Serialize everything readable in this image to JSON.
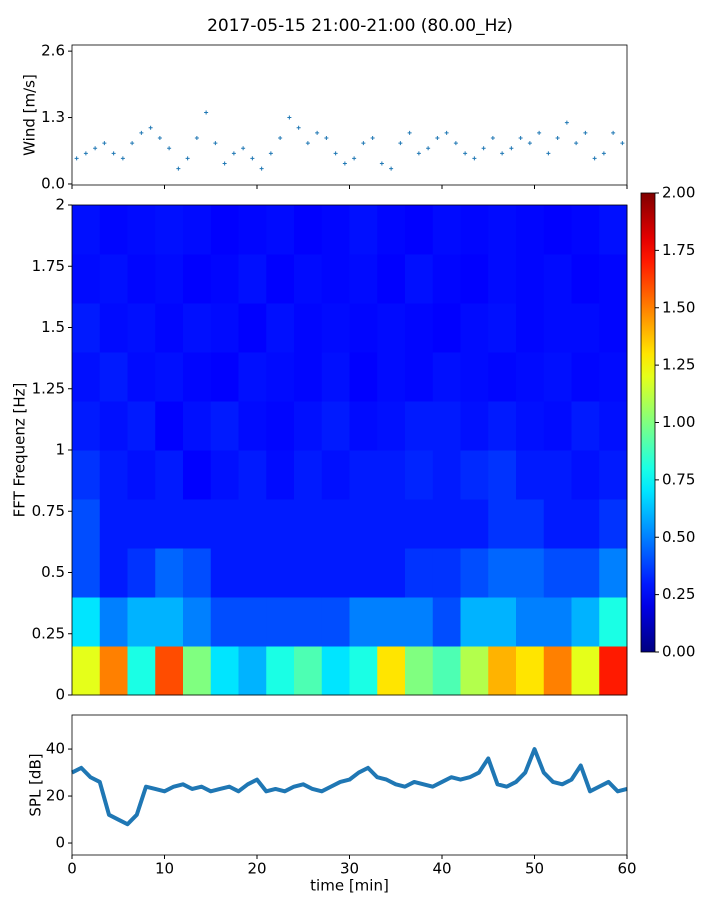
{
  "chart_data": [
    {
      "type": "scatter",
      "title": "2017-05-15 21:00-21:00 (80.00_Hz)",
      "ylabel": "Wind [m/s]",
      "color": "#1f77b4",
      "x": [
        0.5,
        1.5,
        2.5,
        3.5,
        4.5,
        5.5,
        6.5,
        7.5,
        8.5,
        9.5,
        10.5,
        11.5,
        12.5,
        13.5,
        14.5,
        15.5,
        16.5,
        17.5,
        18.5,
        19.5,
        20.5,
        21.5,
        22.5,
        23.5,
        24.5,
        25.5,
        26.5,
        27.5,
        28.5,
        29.5,
        30.5,
        31.5,
        32.5,
        33.5,
        34.5,
        35.5,
        36.5,
        37.5,
        38.5,
        39.5,
        40.5,
        41.5,
        42.5,
        43.5,
        44.5,
        45.5,
        46.5,
        47.5,
        48.5,
        49.5,
        50.5,
        51.5,
        52.5,
        53.5,
        54.5,
        55.5,
        56.5,
        57.5,
        58.5,
        59.5
      ],
      "values": [
        0.5,
        0.6,
        0.7,
        0.8,
        0.6,
        0.5,
        0.8,
        1.0,
        1.1,
        0.9,
        0.7,
        0.3,
        0.5,
        0.9,
        1.4,
        0.8,
        0.4,
        0.6,
        0.7,
        0.5,
        0.3,
        0.6,
        0.9,
        1.3,
        1.1,
        0.8,
        1.0,
        0.9,
        0.6,
        0.4,
        0.5,
        0.8,
        0.9,
        0.4,
        0.3,
        0.8,
        1.0,
        0.6,
        0.7,
        0.9,
        1.0,
        0.8,
        0.6,
        0.5,
        0.7,
        0.9,
        0.6,
        0.7,
        0.9,
        0.8,
        1.0,
        0.6,
        0.9,
        1.2,
        0.8,
        1.0,
        0.5,
        0.6,
        1.0,
        0.8
      ],
      "xlim": [
        0,
        60
      ],
      "xticks": [
        0,
        10,
        20,
        30,
        40,
        50,
        60
      ],
      "show_xtick_labels": false,
      "ylim": [
        -0.02,
        2.72
      ],
      "yticks": [
        {
          "value": 0,
          "label": "0.0"
        },
        1.3,
        2.6
      ]
    },
    {
      "type": "heatmap",
      "ylabel": "FFT Frequenz [Hz]",
      "colormap": "jet",
      "xlim": [
        0,
        60
      ],
      "ylim": [
        0,
        2
      ],
      "yticks": [
        0,
        0.25,
        0.5,
        0.75,
        1,
        1.25,
        1.5,
        1.75,
        2
      ],
      "z": [
        [
          1.2,
          1.5,
          0.8,
          1.6,
          1.0,
          0.7,
          0.6,
          0.8,
          0.9,
          0.7,
          0.8,
          1.3,
          1.0,
          0.9,
          1.1,
          1.4,
          1.3,
          1.5,
          1.2,
          1.7
        ],
        [
          0.7,
          0.5,
          0.6,
          0.6,
          0.5,
          0.4,
          0.4,
          0.4,
          0.4,
          0.4,
          0.5,
          0.5,
          0.5,
          0.4,
          0.6,
          0.6,
          0.5,
          0.5,
          0.6,
          0.8
        ],
        [
          0.4,
          0.3,
          0.35,
          0.45,
          0.4,
          0.3,
          0.3,
          0.3,
          0.3,
          0.3,
          0.3,
          0.3,
          0.35,
          0.35,
          0.4,
          0.45,
          0.45,
          0.4,
          0.4,
          0.5
        ],
        [
          0.4,
          0.3,
          0.3,
          0.3,
          0.3,
          0.3,
          0.3,
          0.3,
          0.3,
          0.3,
          0.3,
          0.3,
          0.3,
          0.3,
          0.3,
          0.35,
          0.35,
          0.3,
          0.3,
          0.35
        ],
        [
          0.35,
          0.3,
          0.28,
          0.3,
          0.25,
          0.28,
          0.3,
          0.27,
          0.3,
          0.28,
          0.3,
          0.3,
          0.32,
          0.3,
          0.33,
          0.35,
          0.3,
          0.3,
          0.28,
          0.3
        ],
        [
          0.3,
          0.28,
          0.3,
          0.25,
          0.28,
          0.3,
          0.27,
          0.26,
          0.28,
          0.3,
          0.27,
          0.28,
          0.3,
          0.3,
          0.28,
          0.3,
          0.28,
          0.27,
          0.3,
          0.28
        ],
        [
          0.28,
          0.3,
          0.27,
          0.28,
          0.26,
          0.25,
          0.28,
          0.27,
          0.26,
          0.28,
          0.25,
          0.27,
          0.26,
          0.28,
          0.27,
          0.26,
          0.27,
          0.28,
          0.26,
          0.27
        ],
        [
          0.3,
          0.27,
          0.28,
          0.26,
          0.28,
          0.27,
          0.25,
          0.28,
          0.26,
          0.27,
          0.26,
          0.27,
          0.26,
          0.25,
          0.27,
          0.28,
          0.26,
          0.27,
          0.27,
          0.26
        ],
        [
          0.27,
          0.28,
          0.26,
          0.27,
          0.25,
          0.26,
          0.28,
          0.25,
          0.27,
          0.26,
          0.27,
          0.25,
          0.28,
          0.26,
          0.25,
          0.27,
          0.26,
          0.27,
          0.25,
          0.26
        ],
        [
          0.28,
          0.26,
          0.27,
          0.28,
          0.27,
          0.25,
          0.26,
          0.27,
          0.25,
          0.26,
          0.28,
          0.26,
          0.25,
          0.27,
          0.26,
          0.27,
          0.26,
          0.25,
          0.26,
          0.28
        ]
      ],
      "colorbar": {
        "lim": [
          0,
          2
        ],
        "ticks": [
          {
            "value": 0,
            "label": "0.00"
          },
          {
            "value": 0.25,
            "label": "0.25"
          },
          {
            "value": 0.5,
            "label": "0.50"
          },
          {
            "value": 0.75,
            "label": "0.75"
          },
          {
            "value": 1,
            "label": "1.00"
          },
          {
            "value": 1.25,
            "label": "1.25"
          },
          {
            "value": 1.5,
            "label": "1.50"
          },
          {
            "value": 1.75,
            "label": "1.75"
          },
          {
            "value": 2,
            "label": "2.00"
          }
        ]
      }
    },
    {
      "type": "line",
      "ylabel": "SPL [dB]",
      "xlabel": "time [min]",
      "color": "#1f77b4",
      "x": [
        0,
        1,
        2,
        3,
        4,
        5,
        6,
        7,
        8,
        9,
        10,
        11,
        12,
        13,
        14,
        15,
        16,
        17,
        18,
        19,
        20,
        21,
        22,
        23,
        24,
        25,
        26,
        27,
        28,
        29,
        30,
        31,
        32,
        33,
        34,
        35,
        36,
        37,
        38,
        39,
        40,
        41,
        42,
        43,
        44,
        45,
        46,
        47,
        48,
        49,
        50,
        51,
        52,
        53,
        54,
        55,
        56,
        57,
        58,
        59,
        60
      ],
      "values": [
        30,
        32,
        28,
        26,
        12,
        10,
        8,
        12,
        24,
        23,
        22,
        24,
        25,
        23,
        24,
        22,
        23,
        24,
        22,
        25,
        27,
        22,
        23,
        22,
        24,
        25,
        23,
        22,
        24,
        26,
        27,
        30,
        32,
        28,
        27,
        25,
        24,
        26,
        25,
        24,
        26,
        28,
        27,
        28,
        30,
        36,
        25,
        24,
        26,
        30,
        40,
        30,
        26,
        25,
        27,
        33,
        22,
        24,
        26,
        22,
        23
      ],
      "xlim": [
        0,
        60
      ],
      "xticks": [
        0,
        10,
        20,
        30,
        40,
        50,
        60
      ],
      "show_xtick_labels": true,
      "ylim": [
        -5.1,
        54.5
      ],
      "yticks": [
        0,
        20,
        40
      ]
    }
  ]
}
